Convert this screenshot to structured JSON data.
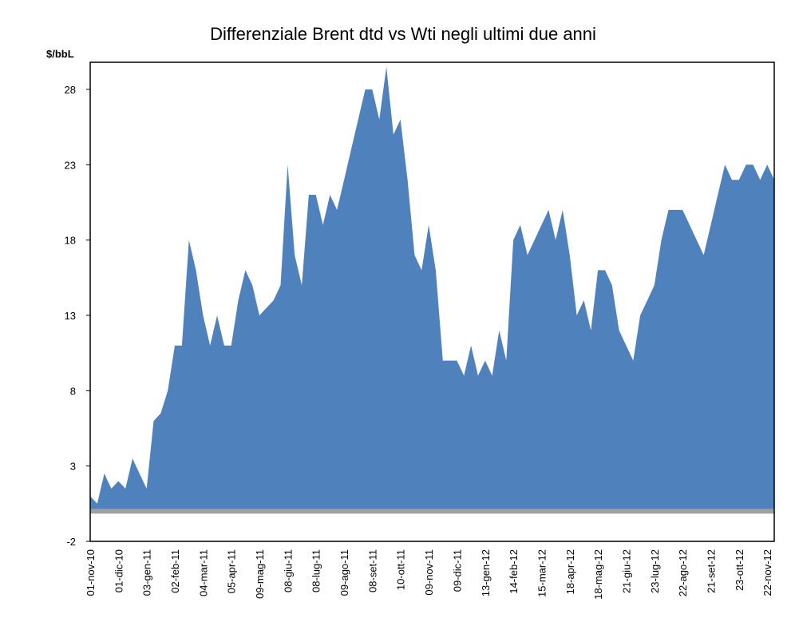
{
  "chart_data": {
    "type": "area",
    "title": "Differenziale Brent dtd vs Wti negli ultimi due anni",
    "y_label": "$/bbL",
    "color": "#4f81bd",
    "ylim": [
      -2,
      29.8
    ],
    "yticks": [
      -2,
      3,
      8,
      13,
      18,
      23,
      28
    ],
    "categories": [
      "01-nov-10",
      null,
      null,
      null,
      "01-dic-10",
      null,
      null,
      null,
      "03-gen-11",
      null,
      null,
      null,
      "02-feb-11",
      null,
      null,
      null,
      "04-mar-11",
      null,
      null,
      null,
      "05-apr-11",
      null,
      null,
      null,
      "09-mag-11",
      null,
      null,
      null,
      "08-giu-11",
      null,
      null,
      null,
      "08-lug-11",
      null,
      null,
      null,
      "09-ago-11",
      null,
      null,
      null,
      "08-set-11",
      null,
      null,
      null,
      "10-ott-11",
      null,
      null,
      null,
      "09-nov-11",
      null,
      null,
      null,
      "09-dic-11",
      null,
      null,
      null,
      "13-gen-12",
      null,
      null,
      null,
      "14-feb-12",
      null,
      null,
      null,
      "15-mar-12",
      null,
      null,
      null,
      "18-apr-12",
      null,
      null,
      null,
      "18-mag-12",
      null,
      null,
      null,
      "21-giu-12",
      null,
      null,
      null,
      "23-lug-12",
      null,
      null,
      null,
      "22-ago-12",
      null,
      null,
      null,
      "21-set-12",
      null,
      null,
      null,
      "23-ott-12",
      null,
      null,
      null,
      "22-nov-12",
      null
    ],
    "values": [
      1,
      0.5,
      2.5,
      1.5,
      2,
      1.5,
      3.5,
      2.5,
      1.5,
      6,
      6.5,
      8,
      11,
      11,
      18,
      16,
      13,
      11,
      13,
      11,
      11,
      14,
      16,
      15,
      13,
      13.5,
      14,
      15,
      23,
      17,
      15,
      21,
      21,
      19,
      21,
      20,
      22,
      24,
      26,
      28,
      28,
      26,
      29.5,
      25,
      26,
      22,
      17,
      16,
      19,
      16,
      10,
      10,
      10,
      9,
      11,
      9,
      10,
      9,
      12,
      10,
      18,
      19,
      17,
      18,
      19,
      20,
      18,
      20,
      17,
      13,
      14,
      12,
      16,
      16,
      15,
      12,
      11,
      10,
      13,
      14,
      15,
      18,
      20,
      20,
      20,
      19,
      18,
      17,
      19,
      21,
      23,
      22,
      22,
      23,
      23,
      22,
      23,
      22
    ]
  }
}
